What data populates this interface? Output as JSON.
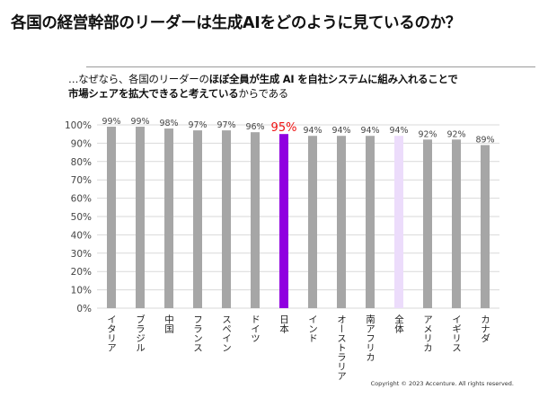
{
  "slide": {
    "title": "各国の経営幹部のリーダーは生成AIをどのように見ているのか？",
    "subtitle_1a": "…なぜなら、各国のリーダーの",
    "subtitle_1b": "ほぼ全員が生成 AI を自社システムに組み入れることで",
    "subtitle_2a": "市場シェアを拡大できると考えている",
    "subtitle_2b": "からである",
    "copyright": "Copyright © 2023 Accenture. All rights reserved."
  },
  "colors": {
    "bar": "#a6a6a6",
    "highlight": "#9000e0",
    "highlight_label": "#ee1111",
    "light": "#ecdcfb",
    "grid": "#d9d9d9",
    "axis_text": "#444444"
  },
  "chart_data": {
    "type": "bar",
    "title": "",
    "xlabel": "",
    "ylabel": "",
    "ylim": [
      0,
      100
    ],
    "y_ticks": [
      0,
      10,
      20,
      30,
      40,
      50,
      60,
      70,
      80,
      90,
      100
    ],
    "y_tick_labels": [
      "0%",
      "10%",
      "20%",
      "30%",
      "40%",
      "50%",
      "60%",
      "70%",
      "80%",
      "90%",
      "100%"
    ],
    "grid": true,
    "categories": [
      "イタリア",
      "ブラジル",
      "中国",
      "フランス",
      "スペイン",
      "ドイツ",
      "日本",
      "インド",
      "オーストラリア",
      "南アフリカ",
      "全体",
      "アメリカ",
      "イギリス",
      "カナダ"
    ],
    "values": [
      99,
      99,
      98,
      97,
      97,
      96,
      95,
      94,
      94,
      94,
      94,
      92,
      92,
      89
    ],
    "value_labels": [
      "99%",
      "99%",
      "98%",
      "97%",
      "97%",
      "96%",
      "95%",
      "94%",
      "94%",
      "94%",
      "94%",
      "92%",
      "92%",
      "89%"
    ],
    "highlight_category": "日本",
    "light_category": "全体"
  }
}
